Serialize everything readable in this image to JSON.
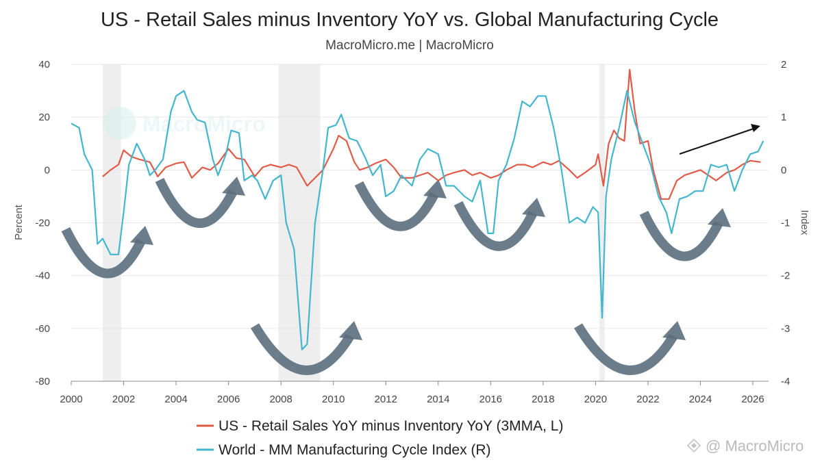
{
  "chart_data": {
    "type": "line",
    "title": "US - Retail Sales minus Inventory YoY vs. Global Manufacturing Cycle",
    "subtitle": "MacroMicro.me | MacroMicro",
    "ylabel": "Percent",
    "y2label": "Index",
    "xlim": [
      2000,
      2026.6
    ],
    "ylim": [
      -80,
      40
    ],
    "y2lim": [
      -4,
      2
    ],
    "x_ticks": [
      "2000",
      "2002",
      "2004",
      "2006",
      "2008",
      "2010",
      "2012",
      "2014",
      "2016",
      "2018",
      "2020",
      "2022",
      "2024",
      "2026"
    ],
    "y_ticks": [
      "40",
      "20",
      "0",
      "-20",
      "-40",
      "-60",
      "-80"
    ],
    "y2_ticks": [
      "2",
      "1",
      "0",
      "-1",
      "-2",
      "-3",
      "-4"
    ],
    "grid": true,
    "legend_position": "bottom",
    "recessions": [
      [
        2001.2,
        2001.9
      ],
      [
        2007.9,
        2009.5
      ],
      [
        2020.15,
        2020.35
      ]
    ],
    "series": [
      {
        "name": "US - Retail Sales YoY minus Inventory YoY (3MMA, L)",
        "color": "#e05a47",
        "axis": "left",
        "points": [
          [
            2001.2,
            -2.5
          ],
          [
            2001.5,
            0
          ],
          [
            2001.8,
            2
          ],
          [
            2002,
            7.5
          ],
          [
            2002.3,
            5
          ],
          [
            2002.6,
            4
          ],
          [
            2003,
            3
          ],
          [
            2003.3,
            -2.5
          ],
          [
            2003.6,
            1
          ],
          [
            2004,
            2.5
          ],
          [
            2004.3,
            3
          ],
          [
            2004.6,
            -3
          ],
          [
            2005,
            1
          ],
          [
            2005.3,
            0
          ],
          [
            2005.6,
            2.5
          ],
          [
            2006,
            8
          ],
          [
            2006.3,
            4.5
          ],
          [
            2006.6,
            4
          ],
          [
            2007,
            -2.5
          ],
          [
            2007.3,
            1
          ],
          [
            2007.6,
            2
          ],
          [
            2008,
            1
          ],
          [
            2008.3,
            2
          ],
          [
            2008.6,
            1
          ],
          [
            2009,
            -6
          ],
          [
            2009.3,
            -3
          ],
          [
            2009.6,
            0
          ],
          [
            2010,
            8
          ],
          [
            2010.2,
            13
          ],
          [
            2010.5,
            11
          ],
          [
            2010.8,
            3
          ],
          [
            2011,
            0
          ],
          [
            2011.3,
            1
          ],
          [
            2011.6,
            2.5
          ],
          [
            2012,
            4
          ],
          [
            2012.3,
            1
          ],
          [
            2012.6,
            -3
          ],
          [
            2013,
            -3
          ],
          [
            2013.3,
            -2
          ],
          [
            2013.6,
            -1
          ],
          [
            2014,
            -4
          ],
          [
            2014.3,
            -2
          ],
          [
            2014.6,
            -1
          ],
          [
            2015,
            0
          ],
          [
            2015.3,
            -2
          ],
          [
            2015.6,
            -1
          ],
          [
            2016,
            -3
          ],
          [
            2016.3,
            -2
          ],
          [
            2016.6,
            0
          ],
          [
            2017,
            2
          ],
          [
            2017.3,
            2
          ],
          [
            2017.6,
            1
          ],
          [
            2018,
            3
          ],
          [
            2018.3,
            2
          ],
          [
            2018.6,
            3.5
          ],
          [
            2019,
            0
          ],
          [
            2019.3,
            -3
          ],
          [
            2019.6,
            -1
          ],
          [
            2020,
            2
          ],
          [
            2020.1,
            6
          ],
          [
            2020.3,
            -6
          ],
          [
            2020.5,
            10
          ],
          [
            2020.7,
            15
          ],
          [
            2020.9,
            12
          ],
          [
            2021.1,
            11
          ],
          [
            2021.3,
            38
          ],
          [
            2021.5,
            22
          ],
          [
            2021.7,
            10
          ],
          [
            2022,
            11
          ],
          [
            2022.2,
            0
          ],
          [
            2022.5,
            -11
          ],
          [
            2022.8,
            -11
          ],
          [
            2023.1,
            -4
          ],
          [
            2023.4,
            -2
          ],
          [
            2023.7,
            -1
          ],
          [
            2024,
            0
          ],
          [
            2024.3,
            -2
          ],
          [
            2024.6,
            -4
          ],
          [
            2025,
            -1
          ],
          [
            2025.3,
            0
          ],
          [
            2025.6,
            2
          ],
          [
            2025.9,
            3.5
          ],
          [
            2026.3,
            3
          ]
        ]
      },
      {
        "name": "World - MM Manufacturing Cycle Index (R)",
        "color": "#43b6cf",
        "axis": "right",
        "points": [
          [
            2000,
            0.88
          ],
          [
            2000.3,
            0.8
          ],
          [
            2000.5,
            0.3
          ],
          [
            2000.8,
            0
          ],
          [
            2001,
            -1.4
          ],
          [
            2001.2,
            -1.3
          ],
          [
            2001.5,
            -1.6
          ],
          [
            2001.8,
            -1.6
          ],
          [
            2002,
            -0.8
          ],
          [
            2002.2,
            0.1
          ],
          [
            2002.5,
            0.5
          ],
          [
            2002.8,
            0.2
          ],
          [
            2003,
            -0.1
          ],
          [
            2003.2,
            0
          ],
          [
            2003.5,
            0.2
          ],
          [
            2003.8,
            1.1
          ],
          [
            2004,
            1.4
          ],
          [
            2004.3,
            1.5
          ],
          [
            2004.6,
            1.1
          ],
          [
            2004.8,
            0.95
          ],
          [
            2005.1,
            0.9
          ],
          [
            2005.4,
            0.2
          ],
          [
            2005.6,
            -0.1
          ],
          [
            2005.9,
            0.3
          ],
          [
            2006.1,
            0.75
          ],
          [
            2006.4,
            0.7
          ],
          [
            2006.6,
            -0.2
          ],
          [
            2006.9,
            -0.1
          ],
          [
            2007.1,
            -0.2
          ],
          [
            2007.4,
            -0.55
          ],
          [
            2007.7,
            -0.2
          ],
          [
            2008,
            -0.1
          ],
          [
            2008.2,
            -1
          ],
          [
            2008.5,
            -1.5
          ],
          [
            2008.8,
            -3.4
          ],
          [
            2009,
            -3.3
          ],
          [
            2009.3,
            -1
          ],
          [
            2009.6,
            0
          ],
          [
            2009.8,
            0.8
          ],
          [
            2010.1,
            0.85
          ],
          [
            2010.3,
            1.05
          ],
          [
            2010.6,
            0.6
          ],
          [
            2010.9,
            0.55
          ],
          [
            2011.2,
            0.25
          ],
          [
            2011.5,
            -0.1
          ],
          [
            2011.8,
            0.1
          ],
          [
            2012,
            -0.5
          ],
          [
            2012.3,
            -0.4
          ],
          [
            2012.6,
            -0.1
          ],
          [
            2013,
            -0.3
          ],
          [
            2013.3,
            0.2
          ],
          [
            2013.6,
            0.4
          ],
          [
            2014,
            0.3
          ],
          [
            2014.3,
            -0.3
          ],
          [
            2014.6,
            -0.3
          ],
          [
            2015,
            -0.5
          ],
          [
            2015.3,
            -0.6
          ],
          [
            2015.6,
            -0.2
          ],
          [
            2015.9,
            -1.2
          ],
          [
            2016.1,
            -1.2
          ],
          [
            2016.3,
            -0.2
          ],
          [
            2016.6,
            0.1
          ],
          [
            2016.9,
            0.6
          ],
          [
            2017.2,
            1.3
          ],
          [
            2017.5,
            1.2
          ],
          [
            2017.8,
            1.4
          ],
          [
            2018.1,
            1.4
          ],
          [
            2018.4,
            0.8
          ],
          [
            2018.7,
            0
          ],
          [
            2019,
            -1
          ],
          [
            2019.3,
            -0.9
          ],
          [
            2019.6,
            -1
          ],
          [
            2019.9,
            -0.7
          ],
          [
            2020.1,
            -0.8
          ],
          [
            2020.25,
            -2.8
          ],
          [
            2020.4,
            -0.5
          ],
          [
            2020.6,
            0.2
          ],
          [
            2020.9,
            0.8
          ],
          [
            2021.2,
            1.5
          ],
          [
            2021.5,
            0.9
          ],
          [
            2021.8,
            0.5
          ],
          [
            2022.1,
            0.1
          ],
          [
            2022.4,
            -0.5
          ],
          [
            2022.7,
            -0.8
          ],
          [
            2022.9,
            -1.2
          ],
          [
            2023.2,
            -0.55
          ],
          [
            2023.5,
            -0.5
          ],
          [
            2023.8,
            -0.4
          ],
          [
            2024.1,
            -0.4
          ],
          [
            2024.4,
            0.1
          ],
          [
            2024.7,
            0.05
          ],
          [
            2025,
            0.1
          ],
          [
            2025.3,
            -0.4
          ],
          [
            2025.6,
            0
          ],
          [
            2025.9,
            0.3
          ],
          [
            2026.2,
            0.35
          ],
          [
            2026.4,
            0.55
          ]
        ]
      }
    ]
  },
  "watermark": "MacroMicro",
  "credit": "@ MacroMicro"
}
